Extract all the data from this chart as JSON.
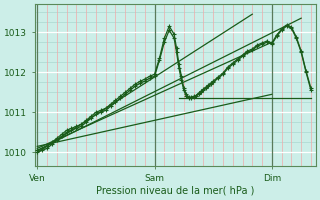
{
  "bg_color": "#cceee8",
  "plot_bg_color": "#cceee8",
  "grid_color_major_h": "#ffffff",
  "grid_color_minor_h": "#aad8d0",
  "grid_color_minor_v": "#f0aaaa",
  "grid_color_major_v": "#888888",
  "line_color_dark": "#1a5c1a",
  "line_color_medium": "#2a7a2a",
  "xlabel": "Pression niveau de la mer( hPa )",
  "xtick_labels": [
    "Ven",
    "Sam",
    "Dim"
  ],
  "xtick_positions": [
    0,
    48,
    96
  ],
  "ytick_labels": [
    "1010",
    "1011",
    "1012",
    "1013"
  ],
  "ytick_positions": [
    1010,
    1011,
    1012,
    1013
  ],
  "ylim": [
    1009.65,
    1013.7
  ],
  "xlim": [
    -1,
    114
  ],
  "series_wavy1_x": [
    0,
    2,
    4,
    6,
    8,
    10,
    12,
    14,
    16,
    18,
    20,
    22,
    24,
    26,
    28,
    30,
    32,
    34,
    36,
    38,
    40,
    42,
    44,
    46,
    48,
    50,
    52,
    54,
    56,
    57,
    58,
    59,
    60,
    61,
    62,
    63,
    64,
    65,
    66,
    67,
    68,
    69,
    70,
    71,
    72,
    74,
    76,
    78,
    80,
    82,
    84,
    86,
    88,
    90,
    92,
    94,
    96,
    98,
    100,
    102,
    104,
    106,
    108,
    110,
    112
  ],
  "series_wavy1_y": [
    1010.0,
    1010.05,
    1010.1,
    1010.2,
    1010.3,
    1010.4,
    1010.5,
    1010.55,
    1010.6,
    1010.65,
    1010.75,
    1010.85,
    1010.95,
    1011.0,
    1011.05,
    1011.15,
    1011.25,
    1011.35,
    1011.45,
    1011.55,
    1011.65,
    1011.72,
    1011.78,
    1011.85,
    1011.9,
    1012.3,
    1012.75,
    1013.05,
    1012.85,
    1012.5,
    1012.1,
    1011.8,
    1011.55,
    1011.4,
    1011.35,
    1011.35,
    1011.38,
    1011.4,
    1011.45,
    1011.5,
    1011.55,
    1011.6,
    1011.65,
    1011.7,
    1011.75,
    1011.85,
    1011.95,
    1012.1,
    1012.2,
    1012.3,
    1012.4,
    1012.5,
    1012.55,
    1012.65,
    1012.7,
    1012.75,
    1012.7,
    1012.9,
    1013.05,
    1013.15,
    1013.1,
    1012.85,
    1012.5,
    1012.0,
    1011.55
  ],
  "series_wavy2_x": [
    0,
    2,
    4,
    6,
    8,
    10,
    12,
    14,
    16,
    18,
    20,
    22,
    24,
    26,
    28,
    30,
    32,
    34,
    36,
    38,
    40,
    42,
    44,
    46,
    48,
    50,
    52,
    54,
    56,
    57,
    58,
    59,
    60,
    61,
    62,
    63,
    64,
    65,
    66,
    67,
    68,
    69,
    70,
    71,
    72,
    74,
    76,
    78,
    80,
    82,
    84,
    86,
    88,
    90,
    92,
    94,
    96,
    98,
    100,
    102,
    104,
    106,
    108,
    110,
    112
  ],
  "series_wavy2_y": [
    1010.05,
    1010.1,
    1010.15,
    1010.25,
    1010.35,
    1010.45,
    1010.55,
    1010.6,
    1010.65,
    1010.7,
    1010.8,
    1010.9,
    1011.0,
    1011.05,
    1011.1,
    1011.2,
    1011.3,
    1011.4,
    1011.5,
    1011.6,
    1011.7,
    1011.77,
    1011.83,
    1011.9,
    1011.95,
    1012.35,
    1012.85,
    1013.15,
    1012.95,
    1012.6,
    1012.2,
    1011.9,
    1011.6,
    1011.45,
    1011.38,
    1011.38,
    1011.4,
    1011.42,
    1011.48,
    1011.53,
    1011.58,
    1011.63,
    1011.68,
    1011.73,
    1011.78,
    1011.88,
    1011.98,
    1012.13,
    1012.23,
    1012.33,
    1012.43,
    1012.53,
    1012.58,
    1012.68,
    1012.73,
    1012.78,
    1012.73,
    1012.93,
    1013.08,
    1013.18,
    1013.13,
    1012.88,
    1012.53,
    1012.03,
    1011.6
  ],
  "trend1_x": [
    0,
    88
  ],
  "trend1_y": [
    1010.0,
    1013.45
  ],
  "trend2_x": [
    0,
    108
  ],
  "trend2_y": [
    1010.05,
    1013.35
  ],
  "trend3_x": [
    0,
    96
  ],
  "trend3_y": [
    1010.1,
    1012.75
  ],
  "trend4_x": [
    0,
    96
  ],
  "trend4_y": [
    1010.15,
    1011.45
  ],
  "flat_line_x": [
    58,
    112
  ],
  "flat_line_y": [
    1011.35,
    1011.35
  ]
}
